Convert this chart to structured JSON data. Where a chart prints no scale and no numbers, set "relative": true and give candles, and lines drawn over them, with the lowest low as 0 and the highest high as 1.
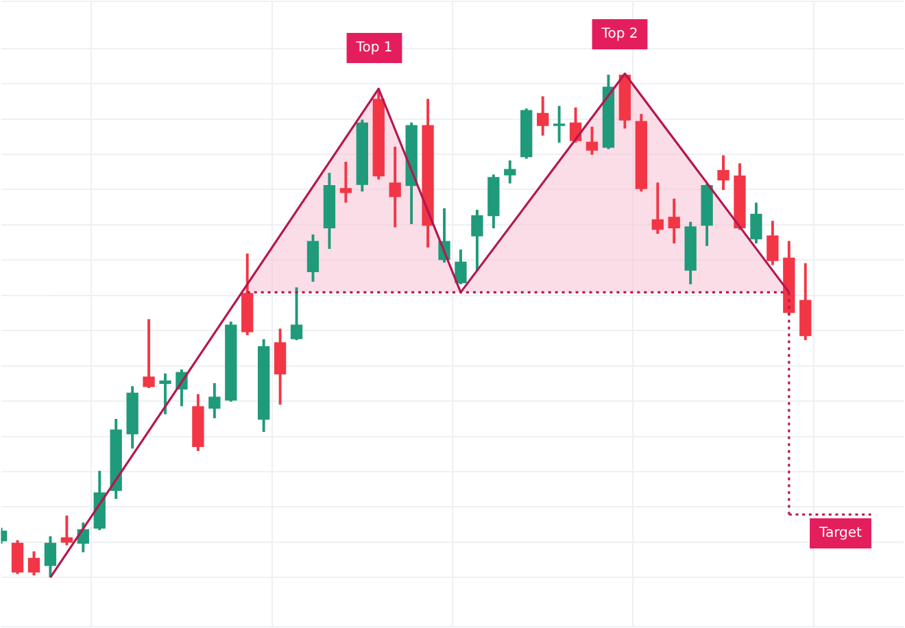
{
  "chart_data": {
    "type": "candlestick",
    "relative": true,
    "grid": true,
    "tick_labels": false,
    "legend": false,
    "categories": [
      null,
      null,
      null,
      null,
      null,
      null,
      null,
      null,
      null,
      null,
      null,
      null,
      null,
      null,
      null,
      null,
      null,
      null,
      null,
      null,
      null,
      null,
      null,
      null,
      null,
      null,
      null,
      null,
      null,
      null,
      null,
      null,
      null,
      null,
      null,
      null,
      null,
      null,
      null,
      null,
      null,
      null,
      null,
      null,
      null,
      null,
      null,
      null,
      null,
      null,
      null,
      null,
      null,
      null,
      null,
      null
    ],
    "ohlc": [
      [
        0.073,
        0.098,
        0.068,
        0.092
      ],
      [
        0.068,
        0.073,
        0.008,
        0.011
      ],
      [
        0.038,
        0.051,
        0.005,
        0.011
      ],
      [
        0.024,
        0.081,
        0,
        0.068
      ],
      [
        0.079,
        0.122,
        0.065,
        0.07
      ],
      [
        0.068,
        0.108,
        0.051,
        0.095
      ],
      [
        0.098,
        0.211,
        0.095,
        0.168
      ],
      [
        0.173,
        0.314,
        0.157,
        0.293
      ],
      [
        0.285,
        0.379,
        0.257,
        0.366
      ],
      [
        0.398,
        0.512,
        0.377,
        0.379
      ],
      [
        0.385,
        0.404,
        0.325,
        0.39
      ],
      [
        0.374,
        0.412,
        0.341,
        0.407
      ],
      [
        0.339,
        0.363,
        0.252,
        0.26
      ],
      [
        0.336,
        0.385,
        0.317,
        0.358
      ],
      [
        0.352,
        0.507,
        0.35,
        0.501
      ],
      [
        0.564,
        0.642,
        0.482,
        0.488
      ],
      [
        0.314,
        0.472,
        0.29,
        0.458
      ],
      [
        0.466,
        0.493,
        0.344,
        0.404
      ],
      [
        0.474,
        0.575,
        0.472,
        0.501
      ],
      [
        0.607,
        0.68,
        0.588,
        0.667
      ],
      [
        0.694,
        0.802,
        0.653,
        0.778
      ],
      [
        0.772,
        0.824,
        0.745,
        0.764
      ],
      [
        0.78,
        0.908,
        0.767,
        0.902
      ],
      [
        0.949,
        0.97,
        0.791,
        0.797
      ],
      [
        0.783,
        0.854,
        0.696,
        0.756
      ],
      [
        0.778,
        0.902,
        0.702,
        0.897
      ],
      [
        0.897,
        0.949,
        0.656,
        0.699
      ],
      [
        0.631,
        0.732,
        0.626,
        0.667
      ],
      [
        0.585,
        0.65,
        0.583,
        0.626
      ],
      [
        0.678,
        0.729,
        0.61,
        0.718
      ],
      [
        0.718,
        0.799,
        0.694,
        0.794
      ],
      [
        0.799,
        0.827,
        0.783,
        0.81
      ],
      [
        0.835,
        0.93,
        0.832,
        0.927
      ],
      [
        0.921,
        0.954,
        0.878,
        0.897
      ],
      [
        0.897,
        0.935,
        0.864,
        0.9
      ],
      [
        0.902,
        0.932,
        0.864,
        0.867
      ],
      [
        0.864,
        0.894,
        0.84,
        0.848
      ],
      [
        0.854,
        0.997,
        0.851,
        0.973
      ],
      [
        0.997,
        1,
        0.892,
        0.908
      ],
      [
        0.905,
        0.919,
        0.767,
        0.772
      ],
      [
        0.71,
        0.783,
        0.683,
        0.691
      ],
      [
        0.715,
        0.751,
        0.664,
        0.694
      ],
      [
        0.61,
        0.705,
        0.583,
        0.696
      ],
      [
        0.699,
        0.78,
        0.659,
        0.778
      ],
      [
        0.808,
        0.837,
        0.77,
        0.789
      ],
      [
        0.797,
        0.821,
        0.691,
        0.694
      ],
      [
        0.672,
        0.743,
        0.664,
        0.721
      ],
      [
        0.678,
        0.707,
        0.621,
        0.629
      ],
      [
        0.634,
        0.667,
        0.523,
        0.526
      ],
      [
        0.55,
        0.623,
        0.472,
        0.48
      ],
      null,
      null,
      null,
      null,
      null,
      null
    ],
    "colors": [
      "#1f9a7a",
      "#f23645",
      "#f23645",
      "#1f9a7a",
      "#f23645",
      "#1f9a7a",
      "#1f9a7a",
      "#1f9a7a",
      "#1f9a7a",
      "#f23645",
      "#1f9a7a",
      "#1f9a7a",
      "#f23645",
      "#1f9a7a",
      "#1f9a7a",
      "#f23645",
      "#1f9a7a",
      "#f23645",
      "#1f9a7a",
      "#1f9a7a",
      "#1f9a7a",
      "#f23645",
      "#1f9a7a",
      "#f23645",
      "#f23645",
      "#1f9a7a",
      "#f23645",
      "#1f9a7a",
      "#1f9a7a",
      "#1f9a7a",
      "#1f9a7a",
      "#1f9a7a",
      "#1f9a7a",
      "#f23645",
      "#1f9a7a",
      "#f23645",
      "#f23645",
      "#1f9a7a",
      "#f23645",
      "#f23645",
      "#f23645",
      "#f23645",
      "#1f9a7a",
      "#1f9a7a",
      "#f23645",
      "#f23645",
      "#1f9a7a",
      "#f23645",
      "#f23645",
      "#f23645",
      null,
      null,
      null,
      null,
      null,
      null
    ],
    "series": [
      {
        "type": "line",
        "color": "#b5174f",
        "line_style": "solid",
        "values": [
          null,
          null,
          null,
          0,
          null,
          null,
          null,
          null,
          null,
          null,
          null,
          null,
          null,
          null,
          null,
          null,
          null,
          null,
          null,
          null,
          null,
          null,
          null,
          0.97,
          null,
          null,
          null,
          null,
          0.566,
          null,
          null,
          null,
          null,
          null,
          null,
          null,
          null,
          null,
          1,
          null,
          null,
          null,
          null,
          null,
          null,
          null,
          null,
          null,
          0.566,
          null,
          null,
          null,
          null,
          null,
          null,
          null
        ]
      },
      {
        "type": "line",
        "color": "#b5174f",
        "line_style": "dotted",
        "values": [
          null,
          null,
          null,
          null,
          null,
          null,
          null,
          null,
          null,
          null,
          null,
          null,
          null,
          null,
          null,
          0.566,
          null,
          null,
          null,
          null,
          null,
          null,
          null,
          null,
          null,
          null,
          null,
          null,
          null,
          null,
          null,
          null,
          null,
          null,
          null,
          null,
          null,
          null,
          null,
          null,
          null,
          null,
          null,
          null,
          null,
          null,
          null,
          null,
          0.566,
          null,
          null,
          null,
          null,
          null,
          null,
          null
        ]
      },
      {
        "type": "line",
        "color": "#b5174f",
        "line_style": "dotted",
        "values": [
          null,
          null,
          null,
          null,
          null,
          null,
          null,
          null,
          null,
          null,
          null,
          null,
          null,
          null,
          null,
          null,
          null,
          null,
          null,
          null,
          null,
          null,
          null,
          null,
          null,
          null,
          null,
          null,
          null,
          null,
          null,
          null,
          null,
          null,
          null,
          null,
          null,
          null,
          null,
          null,
          null,
          null,
          null,
          null,
          null,
          null,
          null,
          null,
          0.125,
          null,
          null,
          null,
          null,
          0.125,
          null,
          null
        ],
        "errors": [
          null,
          null,
          null,
          null,
          null,
          null,
          null,
          null,
          null,
          null,
          null,
          null,
          null,
          null,
          null,
          null,
          null,
          null,
          null,
          null,
          null,
          null,
          null,
          null,
          null,
          null,
          null,
          null,
          null,
          null,
          null,
          null,
          null,
          null,
          null,
          null,
          null,
          null,
          null,
          null,
          null,
          null,
          null,
          null,
          null,
          null,
          null,
          null,
          [
            0.125,
            0.566
          ],
          null,
          null,
          null,
          null,
          null,
          null,
          null
        ]
      }
    ],
    "annotations": [
      "Top 1",
      "Top 2",
      "Target"
    ]
  }
}
